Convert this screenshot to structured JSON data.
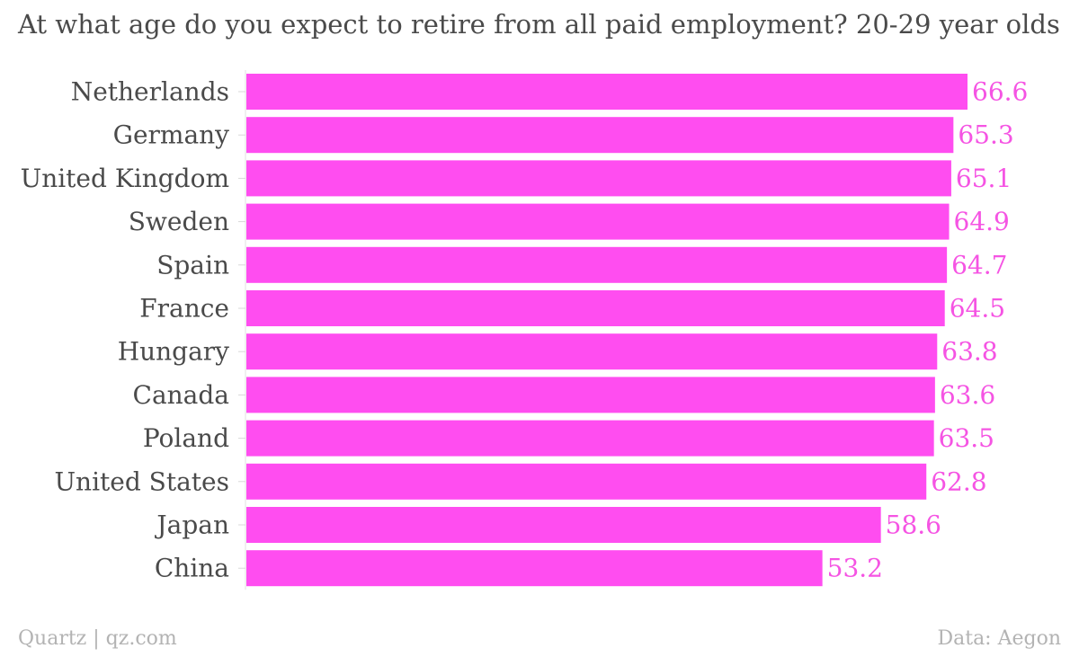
{
  "chart_data": {
    "type": "bar",
    "orientation": "horizontal",
    "title": "At what age do you expect to retire from all paid employment? 20-29 year olds",
    "categories": [
      "Netherlands",
      "Germany",
      "United Kingdom",
      "Sweden",
      "Spain",
      "France",
      "Hungary",
      "Canada",
      "Poland",
      "United States",
      "Japan",
      "China"
    ],
    "values": [
      66.6,
      65.3,
      65.1,
      64.9,
      64.7,
      64.5,
      63.8,
      63.6,
      63.5,
      62.8,
      58.6,
      53.2
    ],
    "value_labels": [
      "66.6",
      "65.3",
      "65.1",
      "64.9",
      "64.7",
      "64.5",
      "63.8",
      "63.6",
      "63.5",
      "62.8",
      "58.6",
      "53.2"
    ],
    "xlim": [
      0,
      66.6
    ],
    "grid": false,
    "colors": {
      "bar": "#ff4df0",
      "value_label": "#f554e3"
    }
  },
  "footer": {
    "source_left": "Quartz | qz.com",
    "source_right": "Data: Aegon"
  }
}
